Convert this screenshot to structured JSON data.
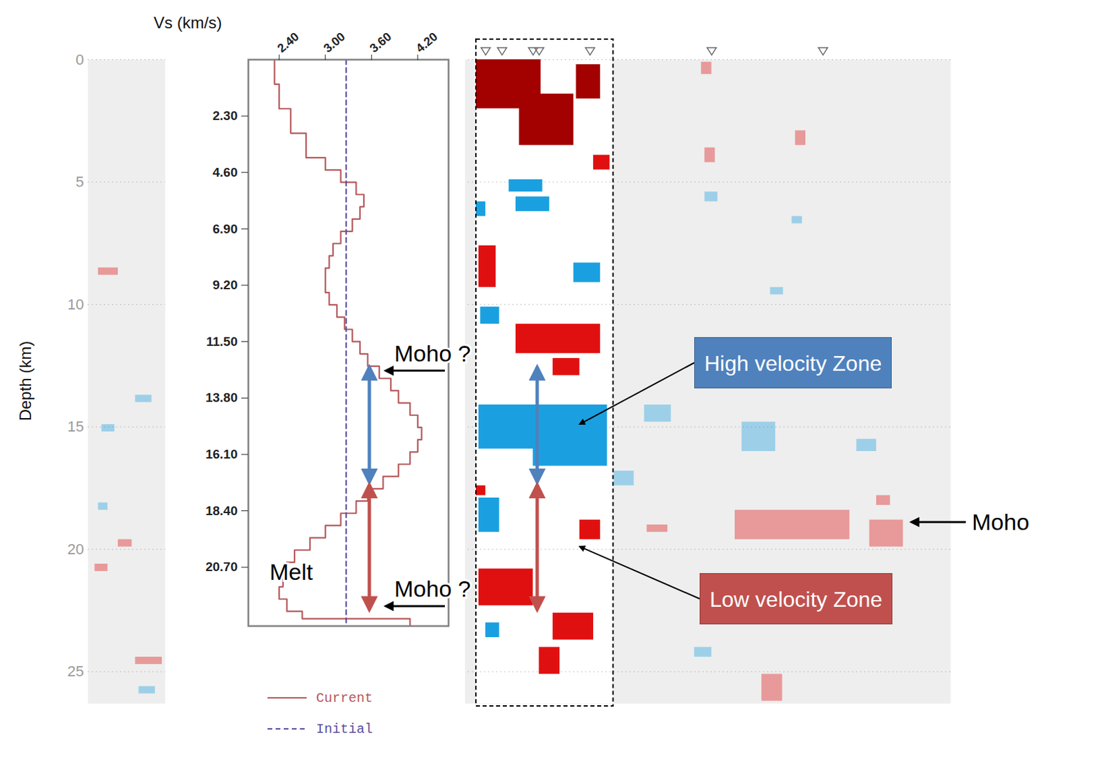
{
  "chart_data": [
    {
      "type": "line",
      "x_label": "Vs (km/s)",
      "xlim": [
        2.0,
        4.6
      ],
      "xticks": [
        {
          "value": 2.4,
          "label": "2.40"
        },
        {
          "value": 3.0,
          "label": "3.00"
        },
        {
          "value": 3.6,
          "label": "3.60"
        },
        {
          "value": 4.2,
          "label": "4.20"
        }
      ],
      "ylim": [
        0,
        23.1
      ],
      "yticks": [
        {
          "value": 2.3,
          "label": "2.30"
        },
        {
          "value": 4.6,
          "label": "4.60"
        },
        {
          "value": 6.9,
          "label": "6.90"
        },
        {
          "value": 9.2,
          "label": "9.20"
        },
        {
          "value": 11.5,
          "label": "11.50"
        },
        {
          "value": 13.8,
          "label": "13.80"
        },
        {
          "value": 16.1,
          "label": "16.10"
        },
        {
          "value": 18.4,
          "label": "18.40"
        },
        {
          "value": 20.7,
          "label": "20.70"
        }
      ],
      "legend": "bottom",
      "series": [
        {
          "name": "Current",
          "color": "#b5585a",
          "line_style": "solid",
          "depth": [
            0,
            1,
            2,
            3,
            4,
            4.5,
            5,
            5.5,
            6,
            6.5,
            7,
            7.5,
            8,
            8.5,
            9,
            9.5,
            10,
            10.5,
            11,
            11.5,
            12,
            12.5,
            13,
            13.5,
            14,
            14.5,
            15,
            15.5,
            16,
            16.5,
            17,
            17.5,
            18,
            18.5,
            19,
            19.5,
            20,
            20.5,
            21,
            21.5,
            22,
            22.5,
            22.8,
            23.1
          ],
          "values": [
            2.34,
            2.4,
            2.55,
            2.75,
            3.0,
            3.2,
            3.4,
            3.5,
            3.45,
            3.35,
            3.2,
            3.1,
            3.05,
            3.0,
            3.0,
            3.05,
            3.15,
            3.25,
            3.35,
            3.45,
            3.55,
            3.7,
            3.85,
            3.95,
            4.1,
            4.2,
            4.25,
            4.2,
            4.1,
            3.95,
            3.75,
            3.55,
            3.4,
            3.2,
            3.0,
            2.8,
            2.6,
            2.5,
            2.45,
            2.4,
            2.5,
            2.7,
            4.1,
            4.1
          ]
        },
        {
          "name": "Initial",
          "color": "#5a4fa0",
          "line_style": "dashed",
          "depth": [
            0,
            23.1
          ],
          "values": [
            3.27,
            3.27
          ]
        }
      ],
      "annotations": [
        {
          "text": "Moho ?",
          "depth": 12.7,
          "arrow": true
        },
        {
          "text": "Moho ?",
          "depth": 22.3,
          "arrow": true
        },
        {
          "text": "Melt",
          "depth": 20.9,
          "arrow": false
        }
      ]
    },
    {
      "type": "heatmap",
      "y_label": "Depth (km)",
      "xlim": [
        0,
        100
      ],
      "ylim": [
        0,
        26.3
      ],
      "yticks": [
        0,
        5,
        10,
        15,
        20,
        25
      ],
      "grid": true,
      "tick_labels": "y",
      "highlight_x": [
        45,
        60.9
      ],
      "stations": [
        46.1,
        48.0,
        51.6,
        52.3,
        58.2,
        72.3,
        85.2
      ],
      "blobs": [
        {
          "x": [
            45.0,
            52.5
          ],
          "depth": [
            0,
            2.0
          ],
          "color": "#a30000"
        },
        {
          "x": [
            50.0,
            56.3
          ],
          "depth": [
            1.4,
            3.5
          ],
          "color": "#a30000"
        },
        {
          "x": [
            56.6,
            59.4
          ],
          "depth": [
            0.2,
            1.6
          ],
          "color": "#a30000"
        },
        {
          "x": [
            58.6,
            60.5
          ],
          "depth": [
            3.9,
            4.5
          ],
          "color": "#e01010"
        },
        {
          "x": [
            48.8,
            52.7
          ],
          "depth": [
            4.9,
            5.4
          ],
          "color": "#1aa0e0"
        },
        {
          "x": [
            49.6,
            53.5
          ],
          "depth": [
            5.6,
            6.2
          ],
          "color": "#1aa0e0"
        },
        {
          "x": [
            45.0,
            46.1
          ],
          "depth": [
            5.8,
            6.4
          ],
          "color": "#1aa0e0"
        },
        {
          "x": [
            45.3,
            47.3
          ],
          "depth": [
            7.6,
            9.3
          ],
          "color": "#e01010"
        },
        {
          "x": [
            56.3,
            59.4
          ],
          "depth": [
            8.3,
            9.1
          ],
          "color": "#1aa0e0"
        },
        {
          "x": [
            45.5,
            47.7
          ],
          "depth": [
            10.1,
            10.8
          ],
          "color": "#1aa0e0"
        },
        {
          "x": [
            49.6,
            59.4
          ],
          "depth": [
            10.8,
            12.0
          ],
          "color": "#e01010"
        },
        {
          "x": [
            53.9,
            57.0
          ],
          "depth": [
            12.2,
            12.9
          ],
          "color": "#e01010"
        },
        {
          "x": [
            45.3,
            52.3
          ],
          "depth": [
            14.1,
            15.9
          ],
          "color": "#1aa0e0"
        },
        {
          "x": [
            51.6,
            60.2
          ],
          "depth": [
            14.1,
            16.6
          ],
          "color": "#1aa0e0"
        },
        {
          "x": [
            45.3,
            47.7
          ],
          "depth": [
            17.9,
            19.3
          ],
          "color": "#1aa0e0"
        },
        {
          "x": [
            45.0,
            46.1
          ],
          "depth": [
            17.4,
            17.8
          ],
          "color": "#e01010"
        },
        {
          "x": [
            57.0,
            59.4
          ],
          "depth": [
            18.8,
            19.6
          ],
          "color": "#e01010"
        },
        {
          "x": [
            45.3,
            51.6
          ],
          "depth": [
            20.8,
            22.3
          ],
          "color": "#e01010"
        },
        {
          "x": [
            53.9,
            58.6
          ],
          "depth": [
            22.6,
            23.7
          ],
          "color": "#e01010"
        },
        {
          "x": [
            52.3,
            54.7
          ],
          "depth": [
            24.0,
            25.1
          ],
          "color": "#e01010"
        },
        {
          "x": [
            46.1,
            47.7
          ],
          "depth": [
            23.0,
            23.6
          ],
          "color": "#1aa0e0"
        },
        {
          "x": [
            75.0,
            88.3
          ],
          "depth": [
            18.4,
            19.6
          ],
          "color": "#e01010"
        },
        {
          "x": [
            90.6,
            94.5
          ],
          "depth": [
            18.8,
            19.9
          ],
          "color": "#e01010"
        },
        {
          "x": [
            91.4,
            93.0
          ],
          "depth": [
            17.8,
            18.2
          ],
          "color": "#e01010"
        },
        {
          "x": [
            71.1,
            72.3
          ],
          "depth": [
            0.1,
            0.6
          ],
          "color": "#e01010"
        },
        {
          "x": [
            82.0,
            83.2
          ],
          "depth": [
            2.9,
            3.5
          ],
          "color": "#e01010"
        },
        {
          "x": [
            71.5,
            72.7
          ],
          "depth": [
            3.6,
            4.2
          ],
          "color": "#e01010"
        },
        {
          "x": [
            71.5,
            73.0
          ],
          "depth": [
            5.4,
            5.8
          ],
          "color": "#1aa0e0"
        },
        {
          "x": [
            81.6,
            82.8
          ],
          "depth": [
            6.4,
            6.7
          ],
          "color": "#1aa0e0"
        },
        {
          "x": [
            79.1,
            80.6
          ],
          "depth": [
            9.3,
            9.6
          ],
          "color": "#1aa0e0"
        },
        {
          "x": [
            64.5,
            67.6
          ],
          "depth": [
            14.1,
            14.8
          ],
          "color": "#1aa0e0"
        },
        {
          "x": [
            61.0,
            63.3
          ],
          "depth": [
            16.8,
            17.4
          ],
          "color": "#1aa0e0"
        },
        {
          "x": [
            75.8,
            79.7
          ],
          "depth": [
            14.8,
            16.0
          ],
          "color": "#1aa0e0"
        },
        {
          "x": [
            89.1,
            91.4
          ],
          "depth": [
            15.5,
            16.0
          ],
          "color": "#1aa0e0"
        },
        {
          "x": [
            64.8,
            67.2
          ],
          "depth": [
            19.0,
            19.3
          ],
          "color": "#e01010"
        },
        {
          "x": [
            70.3,
            72.3
          ],
          "depth": [
            24.0,
            24.4
          ],
          "color": "#1aa0e0"
        },
        {
          "x": [
            78.1,
            80.5
          ],
          "depth": [
            25.1,
            26.2
          ],
          "color": "#e01010"
        },
        {
          "x": [
            1.2,
            3.5
          ],
          "depth": [
            8.5,
            8.8
          ],
          "color": "#e01010"
        },
        {
          "x": [
            5.5,
            7.4
          ],
          "depth": [
            13.7,
            14.0
          ],
          "color": "#1aa0e0"
        },
        {
          "x": [
            1.6,
            3.1
          ],
          "depth": [
            14.9,
            15.2
          ],
          "color": "#1aa0e0"
        },
        {
          "x": [
            1.2,
            2.3
          ],
          "depth": [
            18.1,
            18.4
          ],
          "color": "#1aa0e0"
        },
        {
          "x": [
            0.8,
            2.3
          ],
          "depth": [
            20.6,
            20.9
          ],
          "color": "#e01010"
        },
        {
          "x": [
            3.5,
            5.1
          ],
          "depth": [
            19.6,
            19.9
          ],
          "color": "#e01010"
        },
        {
          "x": [
            5.5,
            8.6
          ],
          "depth": [
            24.4,
            24.7
          ],
          "color": "#e01010"
        },
        {
          "x": [
            5.9,
            7.8
          ],
          "depth": [
            25.6,
            25.9
          ],
          "color": "#1aa0e0"
        }
      ],
      "zones": [
        {
          "name": "High velocity Zone",
          "depth": [
            12.5,
            17.3
          ],
          "color": "#4f81bd"
        },
        {
          "name": "Low velocity Zone",
          "depth": [
            17.3,
            22.5
          ],
          "color": "#c0504d"
        }
      ],
      "annotations": [
        {
          "text": "Moho",
          "depth": 18.9,
          "arrow": true
        }
      ]
    }
  ]
}
